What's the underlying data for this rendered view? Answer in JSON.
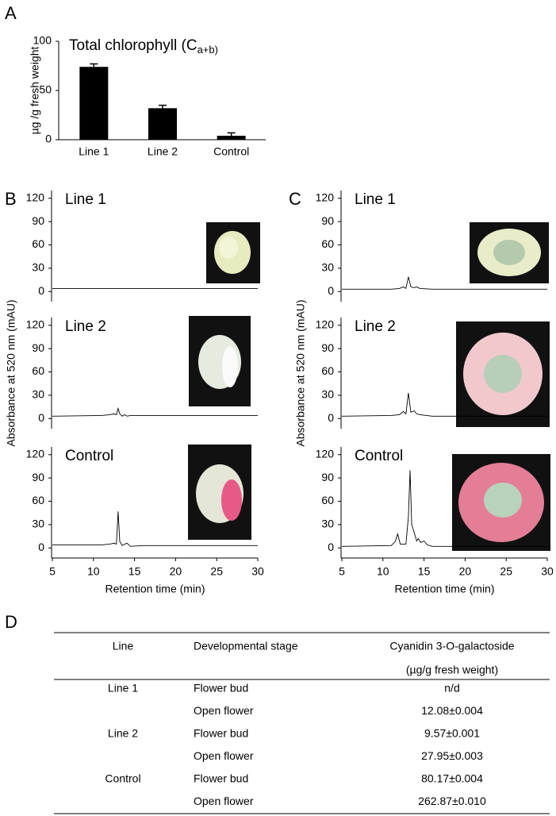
{
  "panel_labels": [
    "A",
    "B",
    "C",
    "D"
  ],
  "chart_data": [
    {
      "type": "bar",
      "title": "Total chlorophyll (C",
      "title_subscript": "a+b)",
      "ylabel": "µg /g fresh weight",
      "categories": [
        "Line 1",
        "Line 2",
        "Control"
      ],
      "values": [
        74,
        32,
        4
      ],
      "errors": [
        3,
        3,
        3
      ],
      "color": "#000000",
      "ylim": [
        0,
        100
      ],
      "yticks": [
        0,
        50,
        100
      ]
    },
    {
      "type": "line",
      "label": "Line 1",
      "x": [
        5,
        30
      ],
      "values": [
        4,
        4
      ],
      "color": "#000000",
      "xlim": [
        5,
        30
      ],
      "ylim": [
        -13,
        130
      ],
      "yticks": [
        0,
        30,
        60,
        90,
        120
      ]
    },
    {
      "type": "line",
      "label": "Line 2",
      "ylabel": "Absorbance at 520 nm (mAU)",
      "x": [
        5,
        11,
        12,
        12.5,
        12.8,
        13,
        13.2,
        13.5,
        13.8,
        14.1,
        14.5,
        16,
        30
      ],
      "values": [
        3,
        4,
        5,
        6,
        5,
        13,
        6,
        3,
        5,
        3,
        4,
        4,
        4
      ],
      "color": "#000000",
      "xlim": [
        5,
        30
      ],
      "ylim": [
        -13,
        130
      ],
      "yticks": [
        0,
        30,
        60,
        90,
        120
      ]
    },
    {
      "type": "line",
      "label": "Control",
      "xlabel": "Retention time (min)",
      "x": [
        5,
        11,
        12,
        12.5,
        12.8,
        13,
        13.2,
        13.5,
        13.8,
        14.1,
        14.5,
        16,
        30
      ],
      "values": [
        4,
        4,
        5,
        6,
        5,
        47,
        8,
        3,
        5,
        6,
        2,
        3,
        3
      ],
      "color": "#000000",
      "xlim": [
        5,
        30
      ],
      "ylim": [
        -13,
        130
      ],
      "yticks": [
        0,
        30,
        60,
        90,
        120
      ],
      "xticks": [
        5,
        10,
        15,
        20,
        25,
        30
      ]
    },
    {
      "type": "line",
      "label": "Line 1",
      "x": [
        5,
        11,
        12,
        12.5,
        12.8,
        13.1,
        13.4,
        13.8,
        14.1,
        14.5,
        16,
        30
      ],
      "values": [
        3,
        3,
        4,
        6,
        4,
        19,
        6,
        5,
        6,
        4,
        3,
        3
      ],
      "color": "#000000",
      "xlim": [
        5,
        30
      ],
      "ylim": [
        -13,
        130
      ],
      "yticks": [
        0,
        30,
        60,
        90,
        120
      ]
    },
    {
      "type": "line",
      "label": "Line 2",
      "ylabel": "Absorbance at 520 nm (mAU)",
      "x": [
        5,
        11,
        12,
        12.5,
        12.8,
        13.1,
        13.4,
        13.8,
        14.1,
        14.5,
        16,
        30
      ],
      "values": [
        3,
        4,
        5,
        9,
        6,
        33,
        8,
        10,
        6,
        5,
        3,
        3
      ],
      "color": "#000000",
      "xlim": [
        5,
        30
      ],
      "ylim": [
        -13,
        130
      ],
      "yticks": [
        0,
        30,
        60,
        90,
        120
      ]
    },
    {
      "type": "line",
      "label": "Control",
      "xlabel": "Retention time (min)",
      "x": [
        5,
        11,
        11.5,
        11.8,
        12.1,
        12.8,
        13.1,
        13.3,
        13.5,
        13.8,
        14.1,
        14.3,
        14.6,
        15,
        15.4,
        16,
        30
      ],
      "values": [
        2,
        3,
        8,
        18,
        5,
        5,
        40,
        100,
        30,
        20,
        9,
        12,
        7,
        9,
        4,
        2,
        2
      ],
      "color": "#000000",
      "xlim": [
        5,
        30
      ],
      "ylim": [
        -13,
        130
      ],
      "yticks": [
        0,
        30,
        60,
        90,
        120
      ],
      "xticks": [
        5,
        10,
        15,
        20,
        25,
        30
      ]
    }
  ],
  "table": {
    "header": [
      "Line",
      "Developmental stage",
      "Cyanidin 3-O-galactoside"
    ],
    "header_unit": "(µg/g fresh weight)",
    "groups": [
      {
        "line": "Line 1",
        "rows": [
          [
            "Flower bud",
            "n/d"
          ],
          [
            "Open flower",
            "12.08±0.004"
          ]
        ]
      },
      {
        "line": "Line 2",
        "rows": [
          [
            "Flower bud",
            "9.57±0.001"
          ],
          [
            "Open flower",
            "27.95±0.003"
          ]
        ]
      },
      {
        "line": "Control",
        "rows": [
          [
            "Flower bud",
            "80.17±0.004"
          ],
          [
            "Open flower",
            "262.87±0.010"
          ]
        ]
      }
    ]
  }
}
